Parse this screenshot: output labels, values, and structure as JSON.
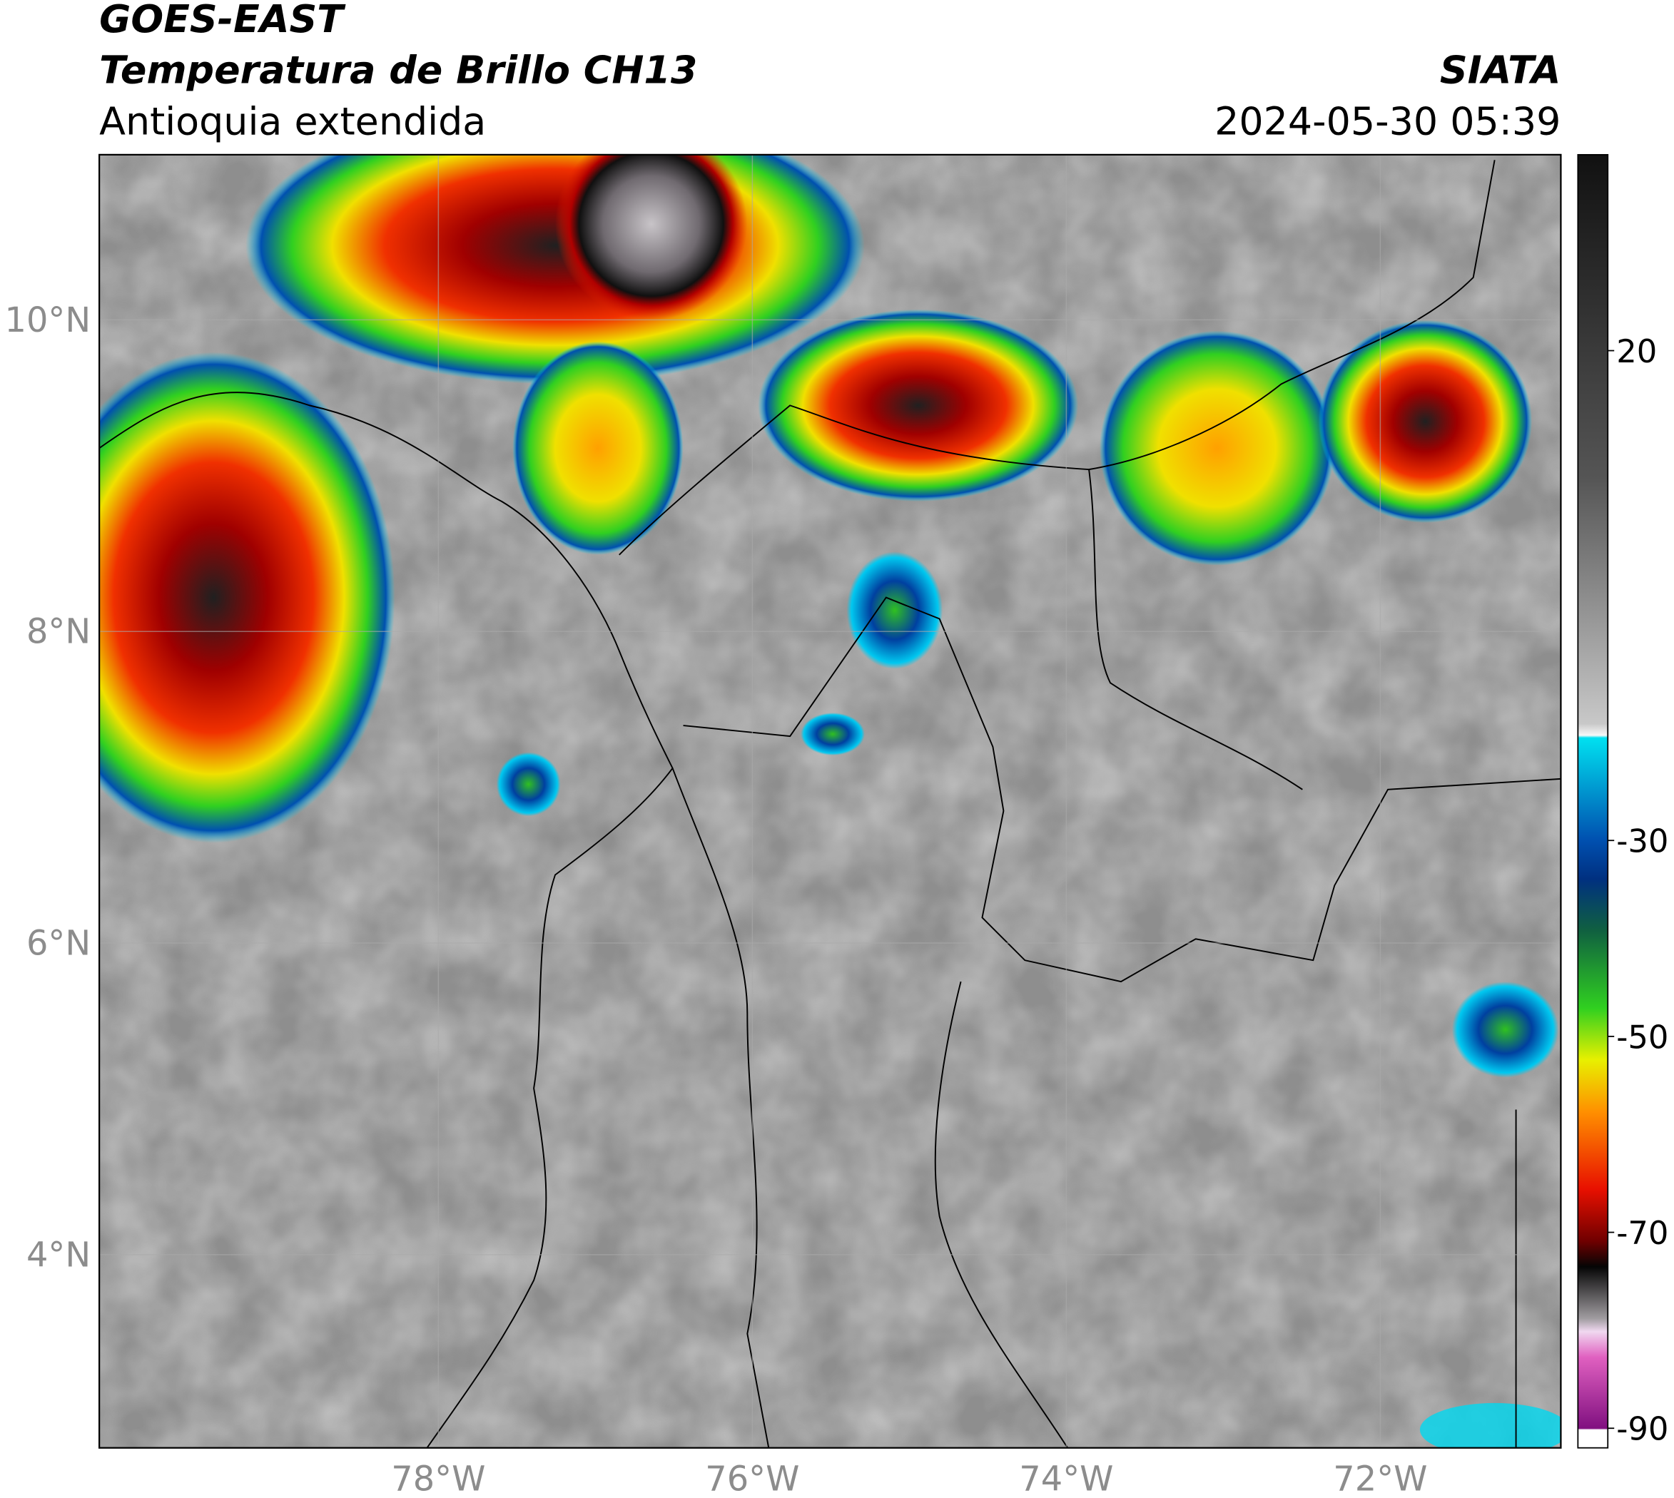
{
  "header": {
    "line1": "GOES-EAST",
    "line2": "Temperatura de Brillo CH13",
    "line3": "Antioquia extendida",
    "source": "SIATA",
    "datetime": "2024-05-30 05:39"
  },
  "map": {
    "type": "map",
    "xlim": [
      -80.16,
      -70.85
    ],
    "ylim": [
      2.76,
      11.06
    ],
    "xticks": [
      {
        "value": -78,
        "label": "78°W"
      },
      {
        "value": -76,
        "label": "76°W"
      },
      {
        "value": -74,
        "label": "74°W"
      },
      {
        "value": -72,
        "label": "72°W"
      }
    ],
    "yticks": [
      {
        "value": 10,
        "label": "10°N"
      },
      {
        "value": 8,
        "label": "8°N"
      },
      {
        "value": 6,
        "label": "6°N"
      },
      {
        "value": 4,
        "label": "4°N"
      }
    ],
    "grid": true
  },
  "colorbar": {
    "clim": [
      -92,
      40
    ],
    "ticks": [
      20,
      -30,
      -50,
      -70,
      -90
    ]
  }
}
